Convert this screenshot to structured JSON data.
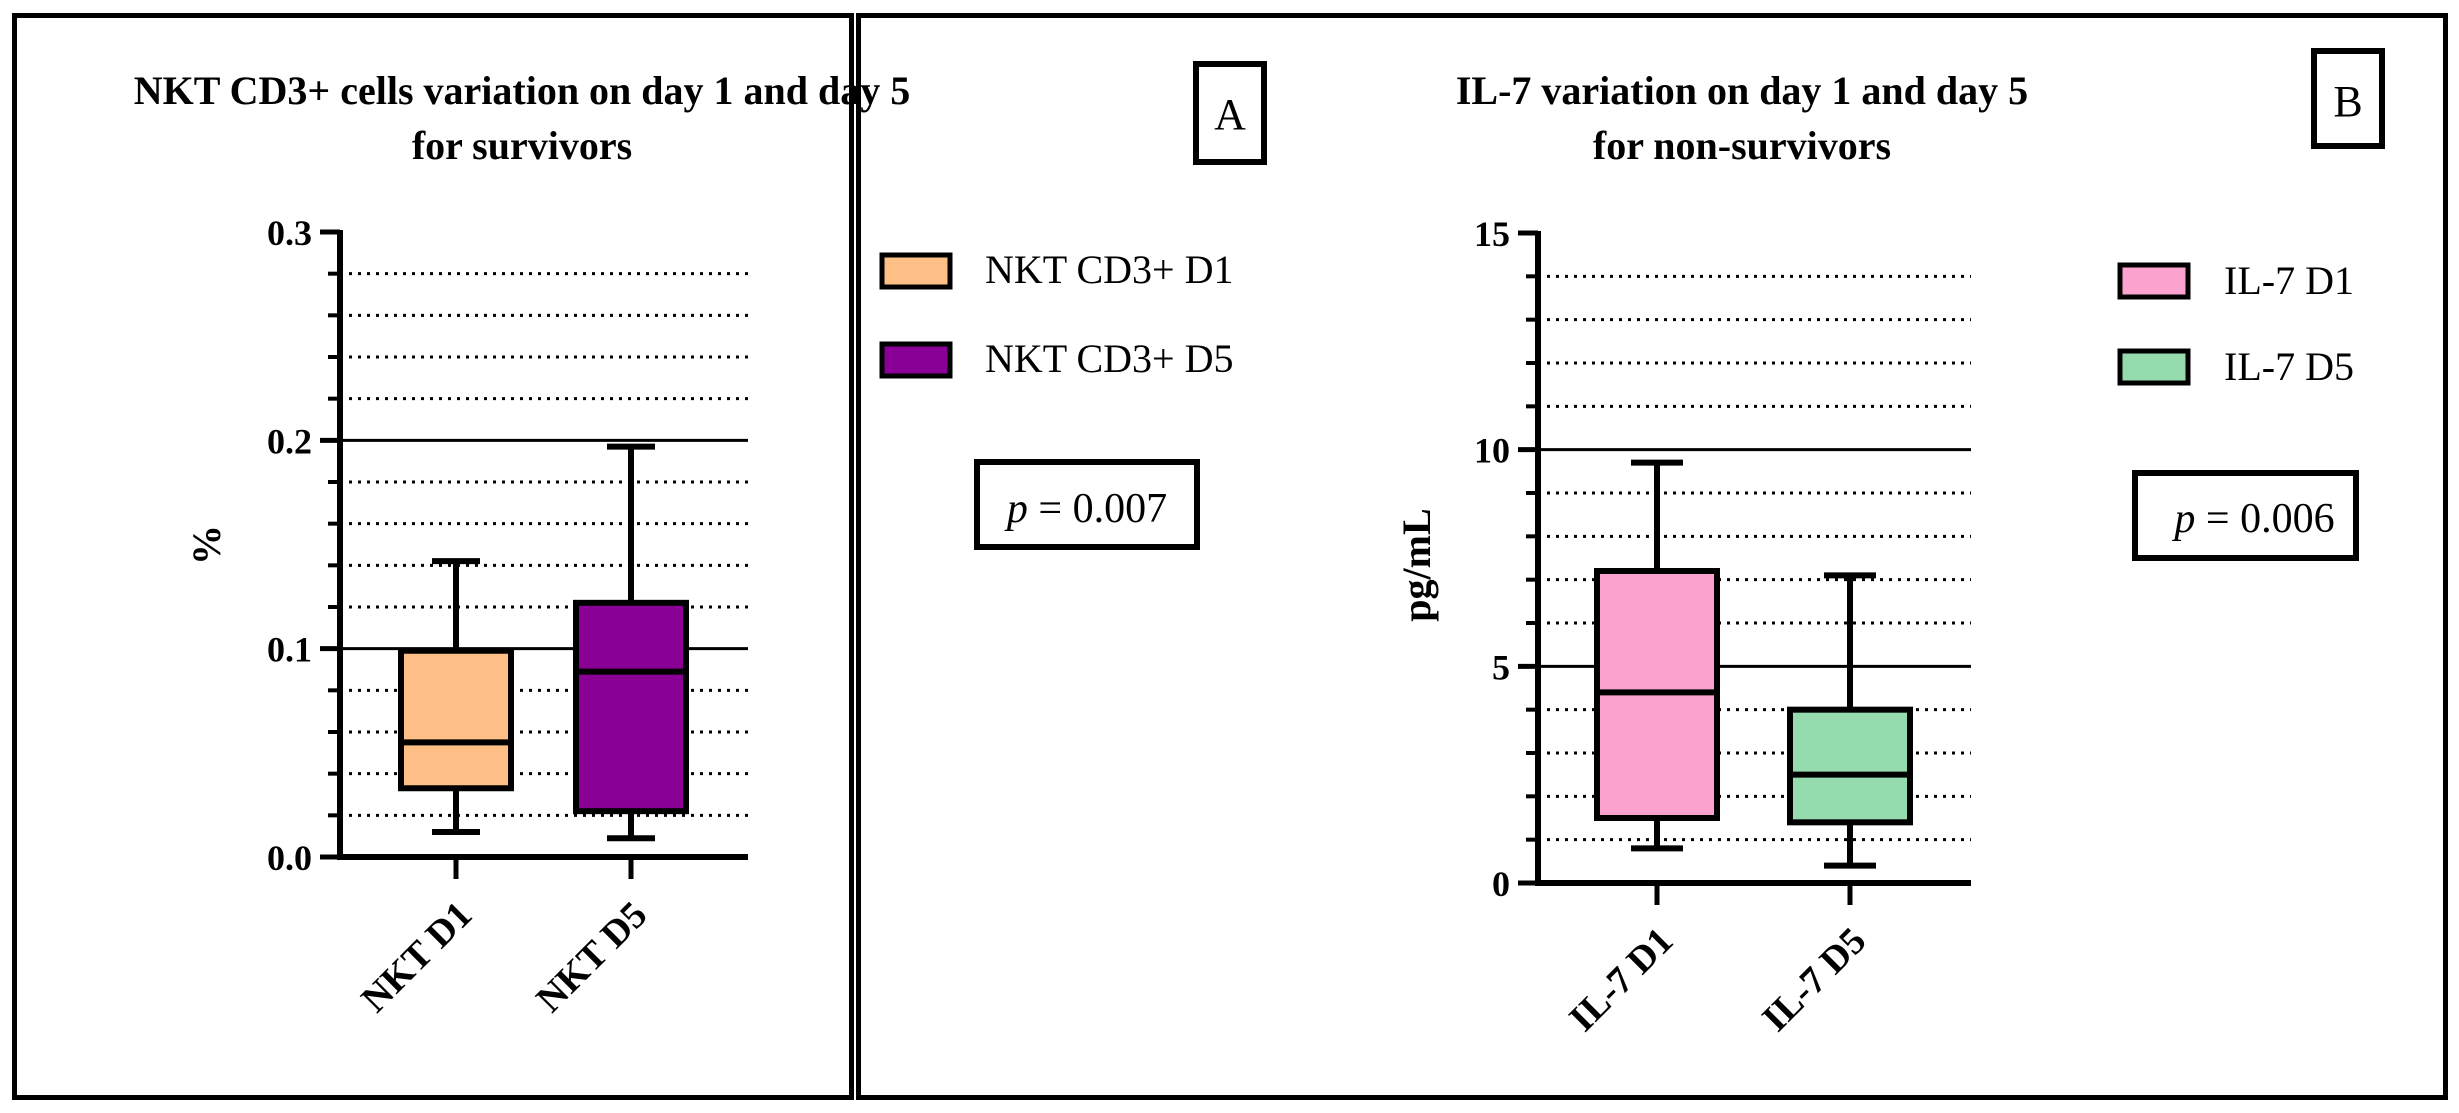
{
  "chart_data": [
    {
      "type": "box",
      "panel_label": "A",
      "title_line1": "NKT CD3+ cells variation on day 1 and day 5",
      "title_line2": "for survivors",
      "xlabel": "",
      "ylabel": "%",
      "ylim": [
        0,
        0.3
      ],
      "yticks": [
        0.0,
        0.1,
        0.2,
        0.3
      ],
      "ytick_labels": [
        "0.0",
        "0.1",
        "0.2",
        "0.3"
      ],
      "minor_step": 0.02,
      "grid": "major solid, minor dotted",
      "legend_position": "top-right",
      "annotation": {
        "p_label": "p",
        "p_text": " = 0.007"
      },
      "categories": [
        "NKT D1",
        "NKT D5"
      ],
      "series": [
        {
          "name": "NKT CD3+ D1",
          "color": "#FDBF85",
          "min": 0.012,
          "q1": 0.033,
          "median": 0.055,
          "q3": 0.099,
          "max": 0.142
        },
        {
          "name": "NKT CD3+ D5",
          "color": "#8A0097",
          "min": 0.009,
          "q1": 0.022,
          "median": 0.089,
          "q3": 0.122,
          "max": 0.197
        }
      ]
    },
    {
      "type": "box",
      "panel_label": "B",
      "title_line1": "IL-7 variation on day 1 and day 5",
      "title_line2": "for non-survivors",
      "xlabel": "",
      "ylabel": "pg/mL",
      "ylim": [
        0,
        15
      ],
      "yticks": [
        0,
        5,
        10,
        15
      ],
      "ytick_labels": [
        "0",
        "5",
        "10",
        "15"
      ],
      "minor_step": 1,
      "grid": "major solid, minor dotted",
      "legend_position": "top-right",
      "annotation": {
        "p_label": "p",
        "p_text": " = 0.006"
      },
      "categories": [
        "IL-7 D1",
        "IL-7 D5"
      ],
      "series": [
        {
          "name": "IL-7 D1",
          "color": "#FBA3CE",
          "min": 0.8,
          "q1": 1.5,
          "median": 4.4,
          "q3": 7.2,
          "max": 9.7
        },
        {
          "name": "IL-7 D5",
          "color": "#96DBAE",
          "min": 0.4,
          "q1": 1.4,
          "median": 2.5,
          "q3": 4.0,
          "max": 7.1
        }
      ]
    }
  ]
}
